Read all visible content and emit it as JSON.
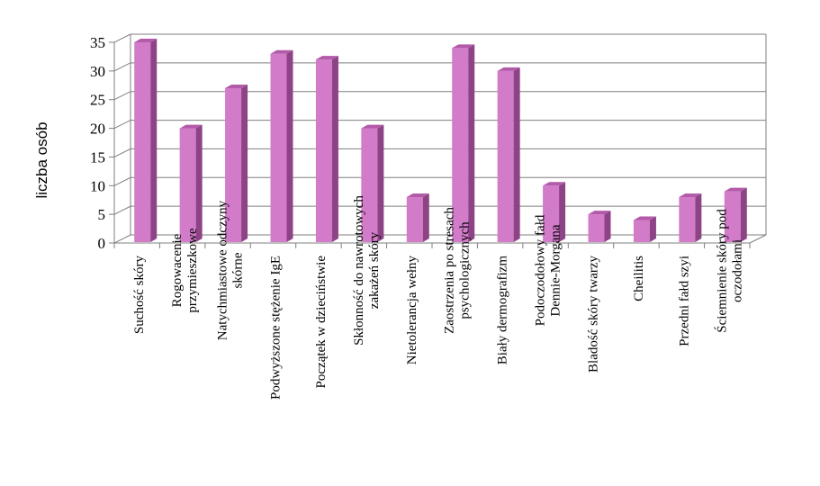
{
  "chart_data": {
    "type": "bar",
    "title": "",
    "xlabel": "",
    "ylabel": "liczba osób",
    "ylim": [
      0,
      35
    ],
    "yticks": [
      0,
      5,
      10,
      15,
      20,
      25,
      30,
      35
    ],
    "grid": true,
    "legend": "none",
    "bar_color": "#d17bc9",
    "bar_side_color": "#8e4386",
    "bar_top_color": "#b35aa9",
    "categories": [
      [
        "Suchość skóry"
      ],
      [
        "Rogowacenie",
        "przymieszkowe"
      ],
      [
        "Natychmiastowe odczyny",
        "skórne"
      ],
      [
        "Podwyższone stężenie IgE"
      ],
      [
        "Początek w dzieciństwie"
      ],
      [
        "Skłonność do nawrotowych",
        "zakażeń skóry"
      ],
      [
        "Nietolerancja wełny"
      ],
      [
        "Zaostrzenia po stresach",
        "psychologicznych"
      ],
      [
        "Biały dermografizm"
      ],
      [
        "Podoczodołowy fałd",
        "Dennie-Morgana"
      ],
      [
        "Bladość skóry twarzy"
      ],
      [
        "Cheilitis"
      ],
      [
        "Przedni fałd szyi"
      ],
      [
        "Ściemnienie skóry pod",
        "oczodołami"
      ]
    ],
    "values": [
      35,
      20,
      27,
      33,
      32,
      20,
      8,
      34,
      30,
      10,
      5,
      4,
      8,
      9
    ]
  }
}
